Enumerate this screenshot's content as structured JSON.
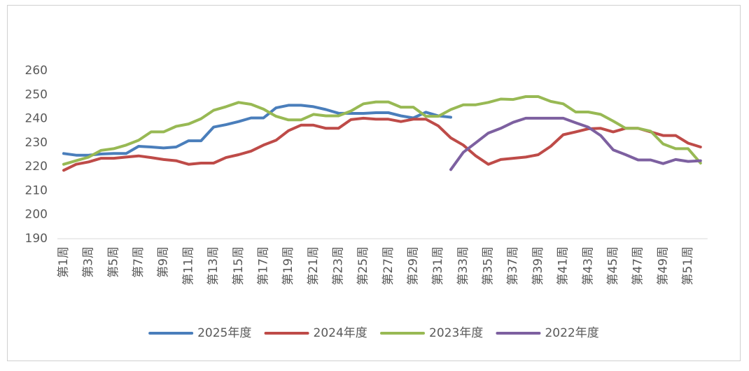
{
  "chart_data": {
    "type": "line",
    "categories": [
      "第1周",
      null,
      "第3周",
      null,
      "第5周",
      null,
      "第7周",
      null,
      "第9周",
      null,
      "第11周",
      null,
      "第13周",
      null,
      "第15周",
      null,
      "第17周",
      null,
      "第19周",
      null,
      "第21周",
      null,
      "第23周",
      null,
      "第25周",
      null,
      "第27周",
      null,
      "第29周",
      null,
      "第31周",
      null,
      "第33周",
      null,
      "第35周",
      null,
      "第37周",
      null,
      "第39周",
      null,
      "第41周",
      null,
      "第43周",
      null,
      "第45周",
      null,
      "第47周",
      null,
      "第49周",
      null,
      "第51周",
      null
    ],
    "series": [
      {
        "name": "2025年度",
        "color": "#4a7ebb",
        "values": [
          225.5,
          224.8,
          224.8,
          225.3,
          225.5,
          225.5,
          228.5,
          228.2,
          227.8,
          228.2,
          230.8,
          230.8,
          236.5,
          237.5,
          238.8,
          240.3,
          240.3,
          244.5,
          245.6,
          245.6,
          245,
          243.8,
          242.3,
          242.2,
          242.2,
          242.5,
          242.5,
          241.2,
          240.3,
          242.7,
          241.2,
          240.6,
          null,
          null,
          null,
          null,
          null,
          null,
          null,
          null,
          null,
          null,
          null,
          null,
          null,
          null,
          null,
          null,
          null,
          null,
          null,
          null
        ]
      },
      {
        "name": "2024年度",
        "color": "#be4b48",
        "values": [
          218.5,
          221,
          222,
          223.5,
          223.5,
          224,
          224.5,
          223.8,
          223,
          222.5,
          221,
          221.5,
          221.5,
          223.8,
          225,
          226.5,
          229,
          231,
          235,
          237.3,
          237.3,
          236,
          236,
          239.6,
          240.2,
          239.8,
          239.8,
          238.8,
          239.8,
          239.8,
          237,
          232,
          229,
          224.5,
          221,
          223,
          223.5,
          224,
          225,
          228.5,
          233.3,
          234.5,
          235.8,
          236,
          234.5,
          236,
          236,
          234.5,
          233,
          233,
          229.8,
          228.2
        ]
      },
      {
        "name": "2023年度",
        "color": "#98b954",
        "values": [
          221,
          222.5,
          224,
          226.8,
          227.5,
          229,
          231,
          234.5,
          234.5,
          236.8,
          237.8,
          240,
          243.5,
          245,
          246.8,
          246,
          244,
          241,
          239.5,
          239.5,
          241.8,
          241.2,
          241.2,
          243.2,
          246.2,
          247,
          247,
          244.8,
          244.8,
          241,
          241,
          243.8,
          245.8,
          245.8,
          246.8,
          248.2,
          248,
          249.2,
          249.2,
          247.2,
          246.2,
          242.8,
          242.8,
          241.8,
          239,
          236,
          236,
          234.8,
          229.5,
          227.5,
          227.5,
          221.5
        ]
      },
      {
        "name": "2022年度",
        "color": "#7d60a0",
        "values": [
          null,
          null,
          null,
          null,
          null,
          null,
          null,
          null,
          null,
          null,
          null,
          null,
          null,
          null,
          null,
          null,
          null,
          null,
          null,
          null,
          null,
          null,
          null,
          null,
          null,
          null,
          null,
          null,
          null,
          null,
          null,
          218.8,
          226,
          230,
          234,
          236,
          238.5,
          240.2,
          240.2,
          240.2,
          240.2,
          238.3,
          236.5,
          233,
          227,
          225,
          222.8,
          222.8,
          221.3,
          223,
          222.2,
          222.5
        ]
      }
    ],
    "ylim": [
      190,
      260
    ],
    "yticks": [
      190,
      200,
      210,
      220,
      230,
      240,
      250,
      260
    ],
    "grid": false,
    "legend": "bottom"
  }
}
